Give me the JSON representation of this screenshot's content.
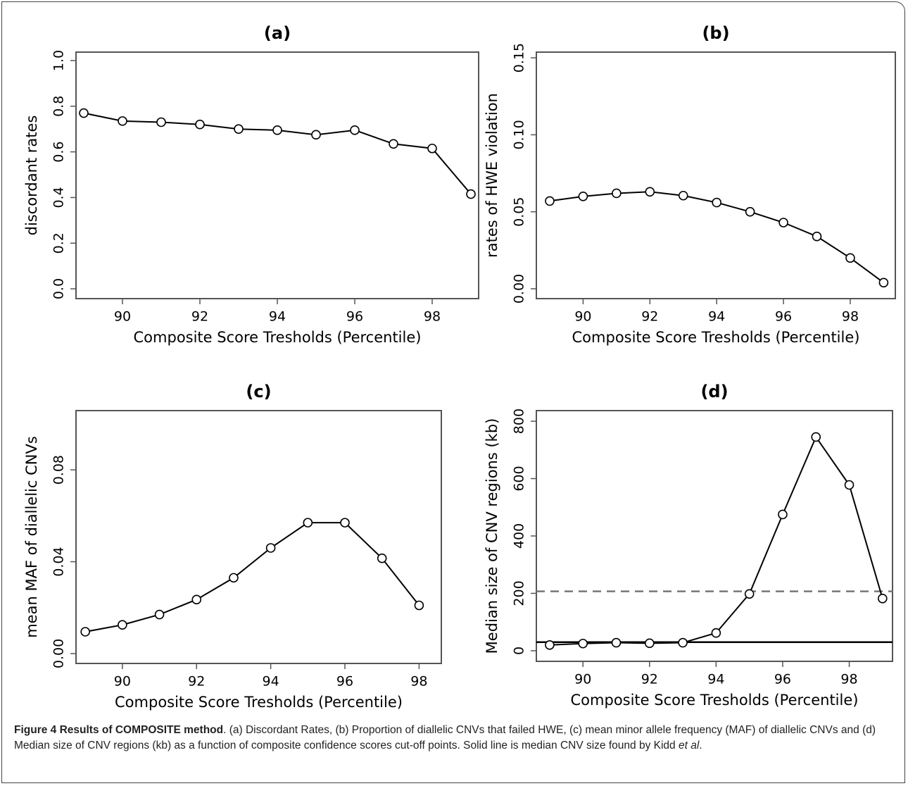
{
  "chart_data": [
    {
      "type": "line",
      "title": "(a)",
      "xlabel": "Composite Score Tresholds (Percentile)",
      "ylabel": "discordant rates",
      "x": [
        89,
        90,
        91,
        92,
        93,
        94,
        95,
        96,
        97,
        98,
        99
      ],
      "values": [
        0.77,
        0.735,
        0.73,
        0.72,
        0.7,
        0.695,
        0.675,
        0.695,
        0.635,
        0.615,
        0.415
      ],
      "color": "#000000",
      "xlim": [
        88.8,
        99.2
      ],
      "ylim": [
        -0.043,
        1.037
      ],
      "xticks": [
        90,
        92,
        94,
        96,
        98
      ],
      "yticks": [
        {
          "value": 0,
          "label": "0.0"
        },
        0.2,
        0.4,
        0.6,
        0.8,
        {
          "value": 1,
          "label": "1.0"
        }
      ]
    },
    {
      "type": "line",
      "title": "(b)",
      "xlabel": "Composite Score Tresholds (Percentile)",
      "ylabel": "rates of HWE violation",
      "x": [
        89,
        90,
        91,
        92,
        93,
        94,
        95,
        96,
        97,
        98,
        99
      ],
      "values": [
        0.057,
        0.06,
        0.062,
        0.063,
        0.0605,
        0.056,
        0.05,
        0.043,
        0.034,
        0.02,
        0.004
      ],
      "color": "#000000",
      "xlim": [
        88.6,
        99.35
      ],
      "ylim": [
        -0.0064,
        0.1537
      ],
      "xticks": [
        90,
        92,
        94,
        96,
        98
      ],
      "yticks": [
        {
          "value": 0,
          "label": "0.00"
        },
        0.05,
        {
          "value": 0.1,
          "label": "0.10"
        },
        0.15
      ]
    },
    {
      "type": "line",
      "title": "(c)",
      "xlabel": "Composite Score Tresholds (Percentile)",
      "ylabel": "mean MAF of diallelic CNVs",
      "x": [
        89,
        90,
        91,
        92,
        93,
        94,
        95,
        96,
        97,
        98
      ],
      "values": [
        0.0095,
        0.0125,
        0.017,
        0.0235,
        0.033,
        0.046,
        0.057,
        0.057,
        0.0415,
        0.021
      ],
      "color": "#000000",
      "xlim": [
        88.75,
        98.6
      ],
      "ylim": [
        -0.0043,
        0.1058
      ],
      "xticks": [
        90,
        92,
        94,
        96,
        98
      ],
      "yticks": [
        {
          "value": 0,
          "label": "0.00"
        },
        0.04,
        0.08
      ]
    },
    {
      "type": "line",
      "title": "(d)",
      "xlabel": "Composite Score Tresholds (Percentile)",
      "ylabel": "Median size of CNV regions (kb)",
      "x": [
        89,
        90,
        91,
        92,
        93,
        94,
        95,
        96,
        97,
        98,
        99
      ],
      "values": [
        20,
        25,
        28,
        26,
        28,
        62,
        198,
        475,
        745,
        578,
        182
      ],
      "color": "#000000",
      "xlim": [
        88.6,
        99.3
      ],
      "ylim": [
        -37,
        837
      ],
      "xticks": [
        90,
        92,
        94,
        96,
        98
      ],
      "yticks": [
        0,
        200,
        400,
        600,
        800
      ],
      "hlines": [
        {
          "value": 207,
          "style": "dashed",
          "color": "#777777"
        },
        {
          "value": 30,
          "style": "solid",
          "color": "#000000"
        }
      ]
    }
  ],
  "caption": {
    "bold": "Figure 4 Results of COMPOSITE method",
    "text": ". (a) Discordant Rates, (b) Proportion of diallelic CNVs that failed HWE, (c) mean minor allele frequency (MAF) of diallelic CNVs and (d) Median size of CNV regions (kb) as a function of composite confidence scores cut-off points. Solid line is median CNV size found by Kidd ",
    "italic": "et al",
    "end": "."
  }
}
